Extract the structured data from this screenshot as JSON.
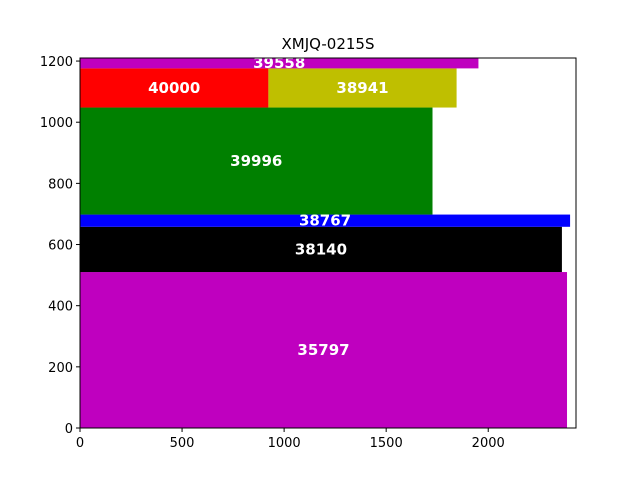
{
  "chart_data": {
    "type": "bar",
    "orientation": "treemap-rectangles",
    "title": "XMJQ-0215S",
    "xlabel": "",
    "ylabel": "",
    "xlim": [
      0,
      2430
    ],
    "ylim": [
      0,
      1210
    ],
    "xticks": [
      0,
      500,
      1000,
      1500,
      2000
    ],
    "yticks": [
      0,
      200,
      400,
      600,
      800,
      1000,
      1200
    ],
    "grid": false,
    "legend": "none",
    "rectangles": [
      {
        "label": "35797",
        "x0": 0,
        "x1": 2386,
        "y0": 0,
        "y1": 510,
        "color": "#bf00bf"
      },
      {
        "label": "38140",
        "x0": 0,
        "x1": 2361,
        "y0": 510,
        "y1": 658,
        "color": "#000000"
      },
      {
        "label": "38767",
        "x0": 0,
        "x1": 2401,
        "y0": 658,
        "y1": 698,
        "color": "#0000ff"
      },
      {
        "label": "39996",
        "x0": 0,
        "x1": 1727,
        "y0": 698,
        "y1": 1048,
        "color": "#008000"
      },
      {
        "label": "40000",
        "x0": 0,
        "x1": 923,
        "y0": 1048,
        "y1": 1176,
        "color": "#ff0000"
      },
      {
        "label": "38941",
        "x0": 923,
        "x1": 1845,
        "y0": 1048,
        "y1": 1176,
        "color": "#bfbf00"
      },
      {
        "label": "39558",
        "x0": 0,
        "x1": 1952,
        "y0": 1176,
        "y1": 1210,
        "color": "#bf00bf"
      }
    ]
  }
}
